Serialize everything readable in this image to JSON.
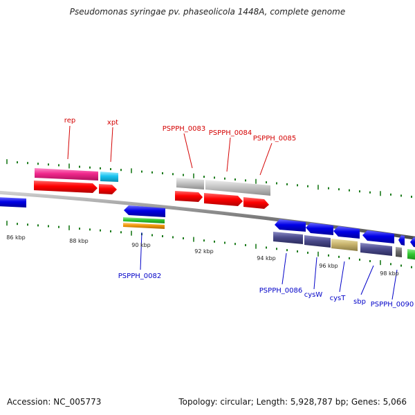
{
  "title": "Pseudomonas syringae pv. phaseolicola 1448A, complete genome",
  "footer": {
    "accession": "Accession: NC_005773",
    "summary": "Topology: circular; Length: 5,928,787 bp; Genes: 5,066"
  },
  "scale_labels": [
    "86 kbp",
    "88 kbp",
    "90 kbp",
    "92 kbp",
    "94 kbp",
    "96 kbp",
    "98 kbp"
  ],
  "genes_top": [
    {
      "label": "rep",
      "color": "#d40000"
    },
    {
      "label": "xpt",
      "color": "#d40000"
    },
    {
      "label": "PSPPH_0083",
      "color": "#d40000"
    },
    {
      "label": "PSPPH_0084",
      "color": "#d40000"
    },
    {
      "label": "PSPPH_0085",
      "color": "#d40000"
    }
  ],
  "genes_bottom": [
    {
      "label": "PSPPH_0082",
      "color": "#0000c8"
    },
    {
      "label": "PSPPH_0086",
      "color": "#0000c8"
    },
    {
      "label": "cysW",
      "color": "#0000c8"
    },
    {
      "label": "cysT",
      "color": "#0000c8"
    },
    {
      "label": "sbp",
      "color": "#0000c8"
    },
    {
      "label": "PSPPH_0090",
      "color": "#0000c8"
    }
  ],
  "colors": {
    "forward_cds": "#ff0000",
    "reverse_cds": "#0000e6",
    "backbone": "#808080",
    "tick": "#1a7a1a",
    "pink": "#f0288c",
    "cyan": "#19c3f0",
    "light_gray": "#c0c0c0",
    "dark_purple": "#4b4b8c",
    "khaki": "#c8b46e",
    "green": "#32c832",
    "orange": "#f0960a"
  }
}
